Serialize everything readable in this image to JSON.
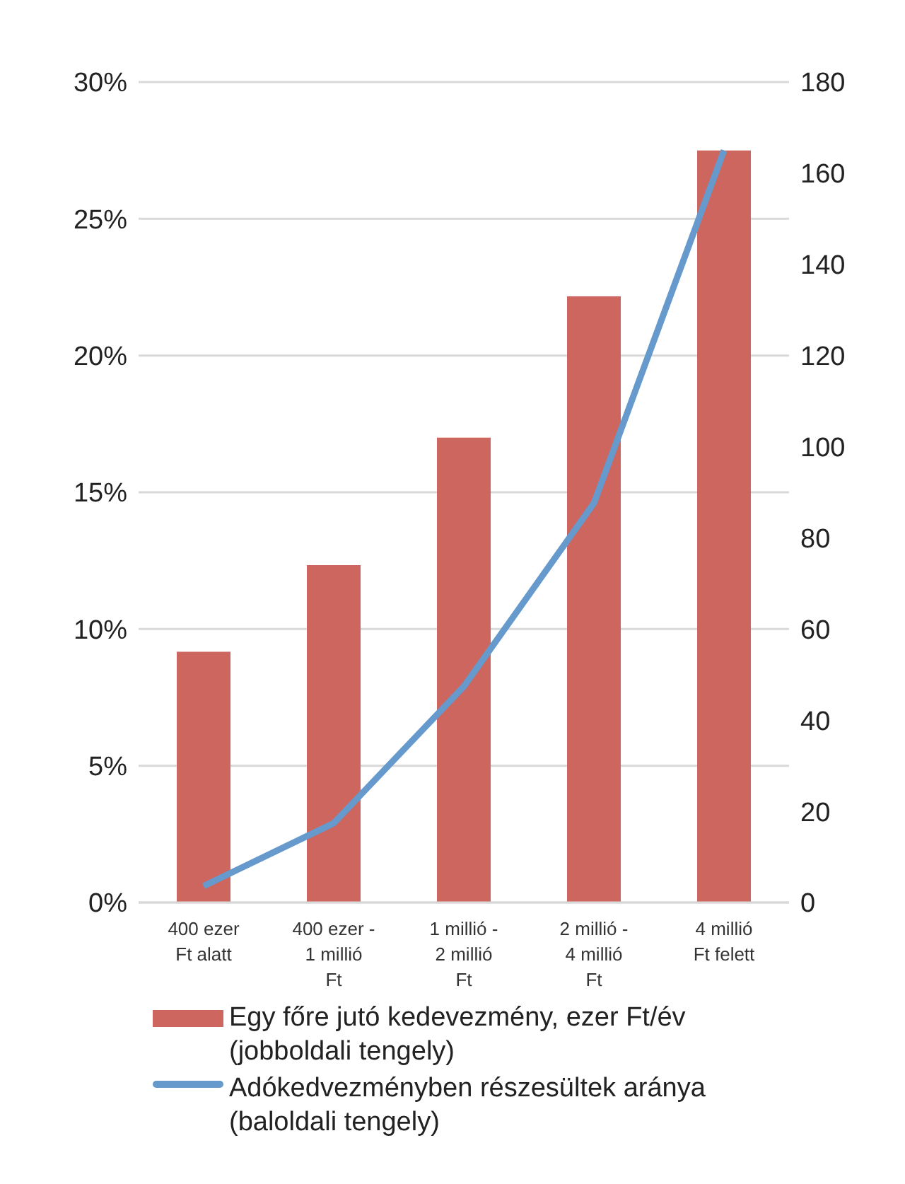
{
  "chart_data": {
    "type": "bar",
    "categories": [
      "400 ezer Ft alatt",
      "400 ezer - 1 millió Ft",
      "1 millió - 2 millió Ft",
      "2 millió - 4 millió Ft",
      "4 millió Ft felett"
    ],
    "series": [
      {
        "name": "Egy főre jutó kedevezmény, ezer Ft/év (jobboldali tengely)",
        "color": "#cc665e",
        "axis": "y2",
        "values": [
          55,
          74,
          102,
          133,
          165
        ]
      },
      {
        "name": "Adókedvezményben részesültek aránya (baloldali tengely)",
        "color": "#6699cc",
        "type": "line",
        "values": [
          0.6,
          2.9,
          7.9,
          14.6,
          27.5
        ]
      }
    ],
    "ylim": [
      0,
      30
    ],
    "yticks": [
      {
        "value": 0,
        "label": "0%"
      },
      {
        "value": 5,
        "label": "5%"
      },
      {
        "value": 10,
        "label": "10%"
      },
      {
        "value": 15,
        "label": "15%"
      },
      {
        "value": 20,
        "label": "20%"
      },
      {
        "value": 25,
        "label": "25%"
      },
      {
        "value": 30,
        "label": "30%"
      }
    ],
    "y2lim": [
      0,
      180
    ],
    "y2ticks": [
      0,
      20,
      40,
      60,
      80,
      100,
      120,
      140,
      160,
      180
    ],
    "grid": "y",
    "legend": "bottom",
    "marker": "none"
  }
}
